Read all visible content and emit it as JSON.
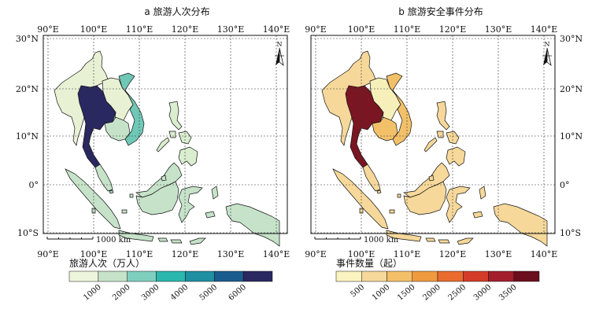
{
  "maps": [
    {
      "title": "a 旅游人次分布",
      "legend": {
        "title": "旅游人次（万人）",
        "colors": [
          "#eef5dd",
          "#c6e3c9",
          "#7fcfbf",
          "#2bb7ad",
          "#1f8fa2",
          "#1b5c8e",
          "#2a2860"
        ],
        "ticks": [
          "1000",
          "2000",
          "3000",
          "4000",
          "5000",
          "6000"
        ]
      },
      "country_colors": {
        "myanmar": "#e8f1d4",
        "laos": "#e8f1d4",
        "vietnam": "#6fc8b6",
        "thailand": "#2a2860",
        "cambodia": "#c6e3c9",
        "malaysia": "#c6e3c9",
        "singapore": "#9fd7c4",
        "indonesia": "#c6e3c9",
        "philippines": "#d9edcf",
        "brunei": "#c6e3c9",
        "timor": "#c6e3c9"
      }
    },
    {
      "title": "b 旅游安全事件分布",
      "legend": {
        "title": "事件数量（起）",
        "colors": [
          "#fbf3c0",
          "#f6d89a",
          "#f3c06a",
          "#ef9a3f",
          "#e96c2f",
          "#d43c2a",
          "#a41f2c",
          "#6b0e1e"
        ],
        "ticks": [
          "500",
          "1000",
          "1500",
          "2000",
          "2500",
          "3000",
          "3500"
        ]
      },
      "country_colors": {
        "myanmar": "#f6d89a",
        "laos": "#f6efb9",
        "vietnam": "#f3c06a",
        "thailand": "#7a1622",
        "cambodia": "#f3c06a",
        "malaysia": "#f6d89a",
        "singapore": "#f6d89a",
        "indonesia": "#f6d89a",
        "philippines": "#f6d89a",
        "brunei": "#f6d89a",
        "timor": "#f6d89a"
      }
    }
  ],
  "axes": {
    "lon_labels": [
      "90°E",
      "100°E",
      "110°E",
      "120°E",
      "130°E",
      "140°E"
    ],
    "lat_labels": [
      "30°N",
      "20°N",
      "10°N",
      "0°",
      "10°S"
    ]
  },
  "north_label": "N",
  "scale_label": "1000 km"
}
